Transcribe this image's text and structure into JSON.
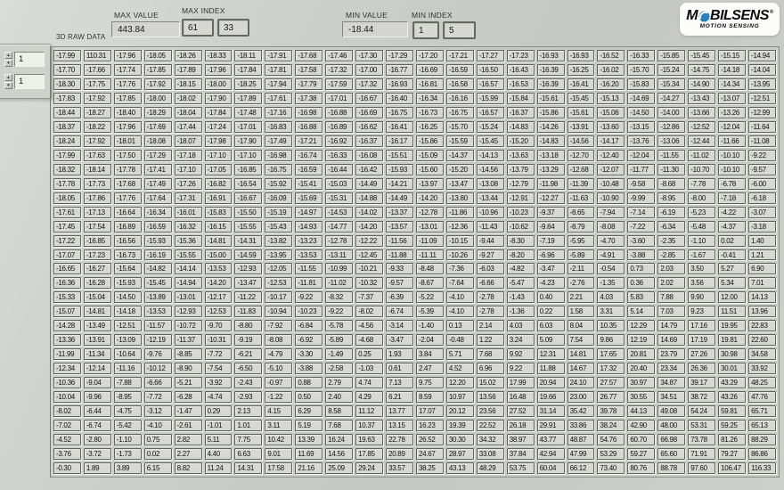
{
  "header": {
    "raw_data_label": "3D RAW DATA",
    "max_value": {
      "label": "MAX VALUE",
      "value": "443.84"
    },
    "max_index": {
      "label": "MAX INDEX",
      "values": [
        "61",
        "33"
      ]
    },
    "min_value": {
      "label": "MIN VALUE",
      "value": "-18.44"
    },
    "min_index": {
      "label": "MIN INDEX",
      "values": [
        "1",
        "5"
      ]
    }
  },
  "logo": {
    "prefix": "M",
    "suffix": "BILSENS",
    "registered": "®",
    "tagline": "MOTION SENSING",
    "o_icon": "circle-swirl-icon",
    "o_color": "#2780bf",
    "text_color": "#0b0b0b",
    "bg_color": "#fcfdfb"
  },
  "controls": {
    "spinners": [
      {
        "value": "1"
      },
      {
        "value": "1"
      }
    ]
  },
  "icons": {
    "spinner_up": "▲",
    "spinner_down": "▼"
  },
  "table": {
    "row_count": 30,
    "col_count": 24,
    "rows": [
      [
        "-17.99",
        "110.31",
        "-17.96",
        "-18.05",
        "-18.26",
        "-18.33",
        "-18.11",
        "-17.91",
        "-17.68",
        "-17.46",
        "-17.30",
        "-17.29",
        "-17.20",
        "-17.21",
        "-17.27",
        "-17.23",
        "-16.93",
        "-16.93",
        "-16.52",
        "-16.33",
        "-15.85",
        "-15.45",
        "-15.15",
        "-14.94"
      ],
      [
        "-17.70",
        "-17.66",
        "-17.74",
        "-17.85",
        "-17.89",
        "-17.96",
        "-17.84",
        "-17.81",
        "-17.58",
        "-17.32",
        "-17.00",
        "-16.77",
        "-16.69",
        "-16.59",
        "-16.50",
        "-16.43",
        "-16.39",
        "-16.25",
        "-16.02",
        "-15.70",
        "-15.24",
        "-14.75",
        "-14.18",
        "-14.04"
      ],
      [
        "-18.30",
        "-17.75",
        "-17.76",
        "-17.92",
        "-18.15",
        "-18.00",
        "-18.25",
        "-17.94",
        "-17.79",
        "-17.59",
        "-17.32",
        "-16.93",
        "-16.81",
        "-16.58",
        "-16.57",
        "-16.53",
        "-16.39",
        "-16.41",
        "-16.20",
        "-15.83",
        "-15.34",
        "-14.90",
        "-14.34",
        "-13.95"
      ],
      [
        "-17.83",
        "-17.92",
        "-17.85",
        "-18.00",
        "-18.02",
        "-17.90",
        "-17.89",
        "-17.61",
        "-17.38",
        "-17.01",
        "-16.67",
        "-16.40",
        "-16.34",
        "-16.16",
        "-15.99",
        "-15.84",
        "-15.61",
        "-15.45",
        "-15.13",
        "-14.69",
        "-14.27",
        "-13.43",
        "-13.07",
        "-12.51"
      ],
      [
        "-18.44",
        "-18.27",
        "-18.40",
        "-18.29",
        "-18.04",
        "-17.84",
        "-17.48",
        "-17.16",
        "-16.98",
        "-16.88",
        "-16.69",
        "-16.75",
        "-16.73",
        "-16.75",
        "-16.57",
        "-16.37",
        "-15.86",
        "-15.61",
        "-15.06",
        "-14.50",
        "-14.00",
        "-13.66",
        "-13.26",
        "-12.99"
      ],
      [
        "-18.37",
        "-18.22",
        "-17.96",
        "-17.69",
        "-17.44",
        "-17.24",
        "-17.01",
        "-16.83",
        "-16.88",
        "-16.89",
        "-16.62",
        "-16.41",
        "-16.25",
        "-15.70",
        "-15.24",
        "-14.83",
        "-14.26",
        "-13.91",
        "-13.60",
        "-13.15",
        "-12.86",
        "-12.52",
        "-12.04",
        "-11.64"
      ],
      [
        "-18.24",
        "-17.92",
        "-18.01",
        "-18.08",
        "-18.07",
        "-17.98",
        "-17.90",
        "-17.49",
        "-17.21",
        "-16.92",
        "-16.37",
        "-16.17",
        "-15.86",
        "-15.59",
        "-15.45",
        "-15.20",
        "-14.83",
        "-14.56",
        "-14.17",
        "-13.76",
        "-13.06",
        "-12.44",
        "-11.66",
        "-11.08"
      ],
      [
        "-17.99",
        "-17.63",
        "-17.50",
        "-17.29",
        "-17.18",
        "-17.10",
        "-17.10",
        "-16.98",
        "-16.74",
        "-16.33",
        "-16.08",
        "-15.51",
        "-15.09",
        "-14.37",
        "-14.13",
        "-13.63",
        "-13.18",
        "-12.70",
        "-12.40",
        "-12.04",
        "-11.55",
        "-11.02",
        "-10.10",
        "-9.22"
      ],
      [
        "-18.32",
        "-18.14",
        "-17.78",
        "-17.41",
        "-17.10",
        "-17.05",
        "-16.85",
        "-16.75",
        "-16.59",
        "-16.44",
        "-16.42",
        "-15.93",
        "-15.60",
        "-15.20",
        "-14.56",
        "-13.79",
        "-13.29",
        "-12.68",
        "-12.07",
        "-11.77",
        "-11.30",
        "-10.70",
        "-10.10",
        "-9.57"
      ],
      [
        "-17.78",
        "-17.73",
        "-17.68",
        "-17.49",
        "-17.26",
        "-16.82",
        "-16.54",
        "-15.92",
        "-15.41",
        "-15.03",
        "-14.49",
        "-14.21",
        "-13.97",
        "-13.47",
        "-13.08",
        "-12.79",
        "-11.98",
        "-11.39",
        "-10.48",
        "-9.58",
        "-8.68",
        "-7.78",
        "-6.78",
        "-6.00"
      ],
      [
        "-18.05",
        "-17.86",
        "-17.76",
        "-17.64",
        "-17.31",
        "-16.91",
        "-16.67",
        "-16.09",
        "-15.69",
        "-15.31",
        "-14.88",
        "-14.49",
        "-14.20",
        "-13.80",
        "-13.44",
        "-12.91",
        "-12.27",
        "-11.63",
        "-10.90",
        "-9.99",
        "-8.95",
        "-8.00",
        "-7.18",
        "-6.18"
      ],
      [
        "-17.61",
        "-17.13",
        "-16.64",
        "-16.34",
        "-16.01",
        "-15.83",
        "-15.50",
        "-15.19",
        "-14.97",
        "-14.53",
        "-14.02",
        "-13.37",
        "-12.78",
        "-11.86",
        "-10.96",
        "-10.23",
        "-9.37",
        "-8.65",
        "-7.94",
        "-7.14",
        "-6.19",
        "-5.23",
        "-4.22",
        "-3.07"
      ],
      [
        "-17.45",
        "-17.54",
        "-16.89",
        "-16.59",
        "-16.32",
        "-16.15",
        "-15.55",
        "-15.43",
        "-14.93",
        "-14.77",
        "-14.20",
        "-13.57",
        "-13.01",
        "-12.36",
        "-11.43",
        "-10.62",
        "-9.64",
        "-8.79",
        "-8.08",
        "-7.22",
        "-6.34",
        "-5.48",
        "-4.37",
        "-3.18"
      ],
      [
        "-17.22",
        "-16.85",
        "-16.56",
        "-15.93",
        "-15.36",
        "-14.81",
        "-14.31",
        "-13.82",
        "-13.23",
        "-12.78",
        "-12.22",
        "-11.56",
        "-11.09",
        "-10.15",
        "-9.44",
        "-8.30",
        "-7.19",
        "-5.95",
        "-4.70",
        "-3.60",
        "-2.35",
        "-1.10",
        "0.02",
        "1.40"
      ],
      [
        "-17.07",
        "-17.23",
        "-16.73",
        "-16.19",
        "-15.55",
        "-15.00",
        "-14.59",
        "-13.95",
        "-13.53",
        "-13.11",
        "-12.45",
        "-11.88",
        "-11.11",
        "-10.26",
        "-9.27",
        "-8.20",
        "-6.96",
        "-5.89",
        "-4.91",
        "-3.88",
        "-2.85",
        "-1.67",
        "-0.41",
        "1.21"
      ],
      [
        "-16.65",
        "-16.27",
        "-15.64",
        "-14.82",
        "-14.14",
        "-13.53",
        "-12.93",
        "-12.05",
        "-11.55",
        "-10.99",
        "-10.21",
        "-9.33",
        "-8.48",
        "-7.36",
        "-6.03",
        "-4.82",
        "-3.47",
        "-2.11",
        "-0.54",
        "0.73",
        "2.03",
        "3.50",
        "5.27",
        "6.90"
      ],
      [
        "-16.36",
        "-16.28",
        "-15.93",
        "-15.45",
        "-14.94",
        "-14.20",
        "-13.47",
        "-12.53",
        "-11.81",
        "-11.02",
        "-10.32",
        "-9.57",
        "-8.67",
        "-7.64",
        "-6.66",
        "-5.47",
        "-4.23",
        "-2.76",
        "-1.35",
        "0.36",
        "2.02",
        "3.56",
        "5.34",
        "7.01"
      ],
      [
        "-15.33",
        "-15.04",
        "-14.50",
        "-13.89",
        "-13.01",
        "-12.17",
        "-11.22",
        "-10.17",
        "-9.22",
        "-8.32",
        "-7.37",
        "-6.39",
        "-5.22",
        "-4.10",
        "-2.78",
        "-1.43",
        "0.40",
        "2.21",
        "4.03",
        "5.83",
        "7.88",
        "9.90",
        "12.00",
        "14.13"
      ],
      [
        "-15.07",
        "-14.81",
        "-14.18",
        "-13.53",
        "-12.93",
        "-12.53",
        "-11.83",
        "-10.94",
        "-10.23",
        "-9.22",
        "-8.02",
        "-6.74",
        "-5.39",
        "-4.10",
        "-2.78",
        "-1.36",
        "0.22",
        "1.58",
        "3.31",
        "5.14",
        "7.03",
        "9.23",
        "11.51",
        "13.96"
      ],
      [
        "-14.28",
        "-13.49",
        "-12.51",
        "-11.57",
        "-10.72",
        "-9.70",
        "-8.80",
        "-7.92",
        "-6.84",
        "-5.78",
        "-4.56",
        "-3.14",
        "-1.40",
        "0.13",
        "2.14",
        "4.03",
        "6.03",
        "8.04",
        "10.35",
        "12.29",
        "14.79",
        "17.16",
        "19.95",
        "22.83"
      ],
      [
        "-13.36",
        "-13.91",
        "-13.09",
        "-12.19",
        "-11.37",
        "-10.31",
        "-9.19",
        "-8.08",
        "-6.92",
        "-5.89",
        "-4.68",
        "-3.47",
        "-2.04",
        "-0.48",
        "1.22",
        "3.24",
        "5.09",
        "7.54",
        "9.86",
        "12.19",
        "14.69",
        "17.19",
        "19.81",
        "22.60"
      ],
      [
        "-11.99",
        "-11.34",
        "-10.64",
        "-9.76",
        "-8.85",
        "-7.72",
        "-6.21",
        "-4.79",
        "-3.30",
        "-1.49",
        "0.25",
        "1.93",
        "3.84",
        "5.71",
        "7.68",
        "9.92",
        "12.31",
        "14.81",
        "17.65",
        "20.81",
        "23.79",
        "27.26",
        "30.98",
        "34.58"
      ],
      [
        "-12.34",
        "-12.14",
        "-11.16",
        "-10.12",
        "-8.90",
        "-7.54",
        "-6.50",
        "-5.10",
        "-3.88",
        "-2.58",
        "-1.03",
        "0.61",
        "2.47",
        "4.52",
        "6.96",
        "9.22",
        "11.88",
        "14.67",
        "17.32",
        "20.40",
        "23.34",
        "26.36",
        "30.01",
        "33.92"
      ],
      [
        "-10.36",
        "-9.04",
        "-7.88",
        "-6.66",
        "-5.21",
        "-3.92",
        "-2.43",
        "-0.97",
        "0.88",
        "2.79",
        "4.74",
        "7.13",
        "9.75",
        "12.20",
        "15.02",
        "17.99",
        "20.94",
        "24.10",
        "27.57",
        "30.97",
        "34.87",
        "39.17",
        "43.29",
        "48.25"
      ],
      [
        "-10.04",
        "-9.96",
        "-8.95",
        "-7.72",
        "-6.28",
        "-4.74",
        "-2.93",
        "-1.22",
        "0.50",
        "2.40",
        "4.29",
        "6.21",
        "8.59",
        "10.97",
        "13.56",
        "16.48",
        "19.66",
        "23.00",
        "26.77",
        "30.55",
        "34.51",
        "38.72",
        "43.26",
        "47.76"
      ],
      [
        "-8.02",
        "-6.44",
        "-4.75",
        "-3.12",
        "-1.47",
        "0.29",
        "2.13",
        "4.15",
        "6.29",
        "8.58",
        "11.12",
        "13.77",
        "17.07",
        "20.12",
        "23.56",
        "27.52",
        "31.14",
        "35.42",
        "39.78",
        "44.13",
        "49.08",
        "54.24",
        "59.81",
        "65.71"
      ],
      [
        "-7.02",
        "-6.74",
        "-5.42",
        "-4.10",
        "-2.61",
        "-1.01",
        "1.01",
        "3.11",
        "5.19",
        "7.68",
        "10.37",
        "13.15",
        "16.23",
        "19.39",
        "22.52",
        "26.18",
        "29.91",
        "33.86",
        "38.24",
        "42.90",
        "48.00",
        "53.31",
        "59.25",
        "65.13"
      ],
      [
        "-4.52",
        "-2.80",
        "-1.10",
        "0.75",
        "2.82",
        "5.11",
        "7.75",
        "10.42",
        "13.39",
        "16.24",
        "19.63",
        "22.78",
        "26.52",
        "30.30",
        "34.32",
        "38.97",
        "43.77",
        "48.87",
        "54.76",
        "60.70",
        "66.98",
        "73.78",
        "81.26",
        "88.29"
      ],
      [
        "-3.76",
        "-3.72",
        "-1.73",
        "0.02",
        "2.27",
        "4.40",
        "6.63",
        "9.01",
        "11.69",
        "14.56",
        "17.85",
        "20.89",
        "24.67",
        "28.97",
        "33.08",
        "37.84",
        "42.94",
        "47.99",
        "53.29",
        "59.27",
        "65.60",
        "71.91",
        "79.27",
        "86.86"
      ],
      [
        "-0.30",
        "1.89",
        "3.89",
        "6.15",
        "8.82",
        "11.24",
        "14.31",
        "17.58",
        "21.16",
        "25.09",
        "29.24",
        "33.57",
        "38.25",
        "43.13",
        "48.29",
        "53.75",
        "60.04",
        "66.12",
        "73.40",
        "80.76",
        "88.78",
        "97.60",
        "106.47",
        "116.33"
      ]
    ]
  }
}
